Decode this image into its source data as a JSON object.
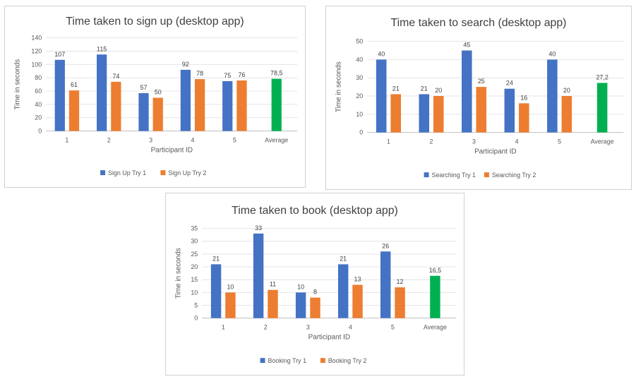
{
  "charts": [
    {
      "type": "bar",
      "title": "Time taken to sign up (desktop app)",
      "xlabel": "Participant ID",
      "ylabel": "Time in seconds",
      "categories": [
        "1",
        "2",
        "3",
        "4",
        "5",
        "Average"
      ],
      "ylim": [
        0,
        140
      ],
      "yticks": [
        0,
        20,
        40,
        60,
        80,
        100,
        120,
        140
      ],
      "grid": true,
      "legend": "bottom",
      "series": [
        {
          "name": "Sign Up Try 1",
          "color": "#4472C4",
          "values": [
            107,
            115,
            57,
            92,
            75,
            null
          ],
          "labels": [
            "107",
            "115",
            "57",
            "92",
            "75",
            ""
          ]
        },
        {
          "name": "Sign Up Try 2",
          "color": "#ED7D31",
          "values": [
            61,
            74,
            50,
            78,
            76,
            null
          ],
          "labels": [
            "61",
            "74",
            "50",
            "78",
            "76",
            ""
          ]
        }
      ],
      "average": {
        "category": "Average",
        "value": 78.5,
        "label": "78,5",
        "color": "#00B050"
      }
    },
    {
      "type": "bar",
      "title": "Time taken to search (desktop app)",
      "xlabel": "Participant ID",
      "ylabel": "Time in seconds",
      "categories": [
        "1",
        "2",
        "3",
        "4",
        "5",
        "Average"
      ],
      "ylim": [
        0,
        50
      ],
      "yticks": [
        0,
        10,
        20,
        30,
        40,
        50
      ],
      "grid": true,
      "legend": "bottom",
      "series": [
        {
          "name": "Searching Try 1",
          "color": "#4472C4",
          "values": [
            40,
            21,
            45,
            24,
            40,
            null
          ],
          "labels": [
            "40",
            "21",
            "45",
            "24",
            "40",
            ""
          ]
        },
        {
          "name": "Searching Try 2",
          "color": "#ED7D31",
          "values": [
            21,
            20,
            25,
            16,
            20,
            null
          ],
          "labels": [
            "21",
            "20",
            "25",
            "16",
            "20",
            ""
          ]
        }
      ],
      "average": {
        "category": "Average",
        "value": 27.2,
        "label": "27,2",
        "color": "#00B050"
      }
    },
    {
      "type": "bar",
      "title": "Time taken to book (desktop app)",
      "xlabel": "Participant ID",
      "ylabel": "Time in seconds",
      "categories": [
        "1",
        "2",
        "3",
        "4",
        "5",
        "Average"
      ],
      "ylim": [
        0,
        35
      ],
      "yticks": [
        0,
        5,
        10,
        15,
        20,
        25,
        30,
        35
      ],
      "grid": true,
      "legend": "bottom",
      "series": [
        {
          "name": "Booking Try 1",
          "color": "#4472C4",
          "values": [
            21,
            33,
            10,
            21,
            26,
            null
          ],
          "labels": [
            "21",
            "33",
            "10",
            "21",
            "26",
            ""
          ]
        },
        {
          "name": "Booking Try 2",
          "color": "#ED7D31",
          "values": [
            10,
            11,
            8,
            13,
            12,
            null
          ],
          "labels": [
            "10",
            "11",
            "8",
            "13",
            "12",
            ""
          ]
        }
      ],
      "average": {
        "category": "Average",
        "value": 16.5,
        "label": "16,5",
        "color": "#00B050"
      }
    }
  ]
}
